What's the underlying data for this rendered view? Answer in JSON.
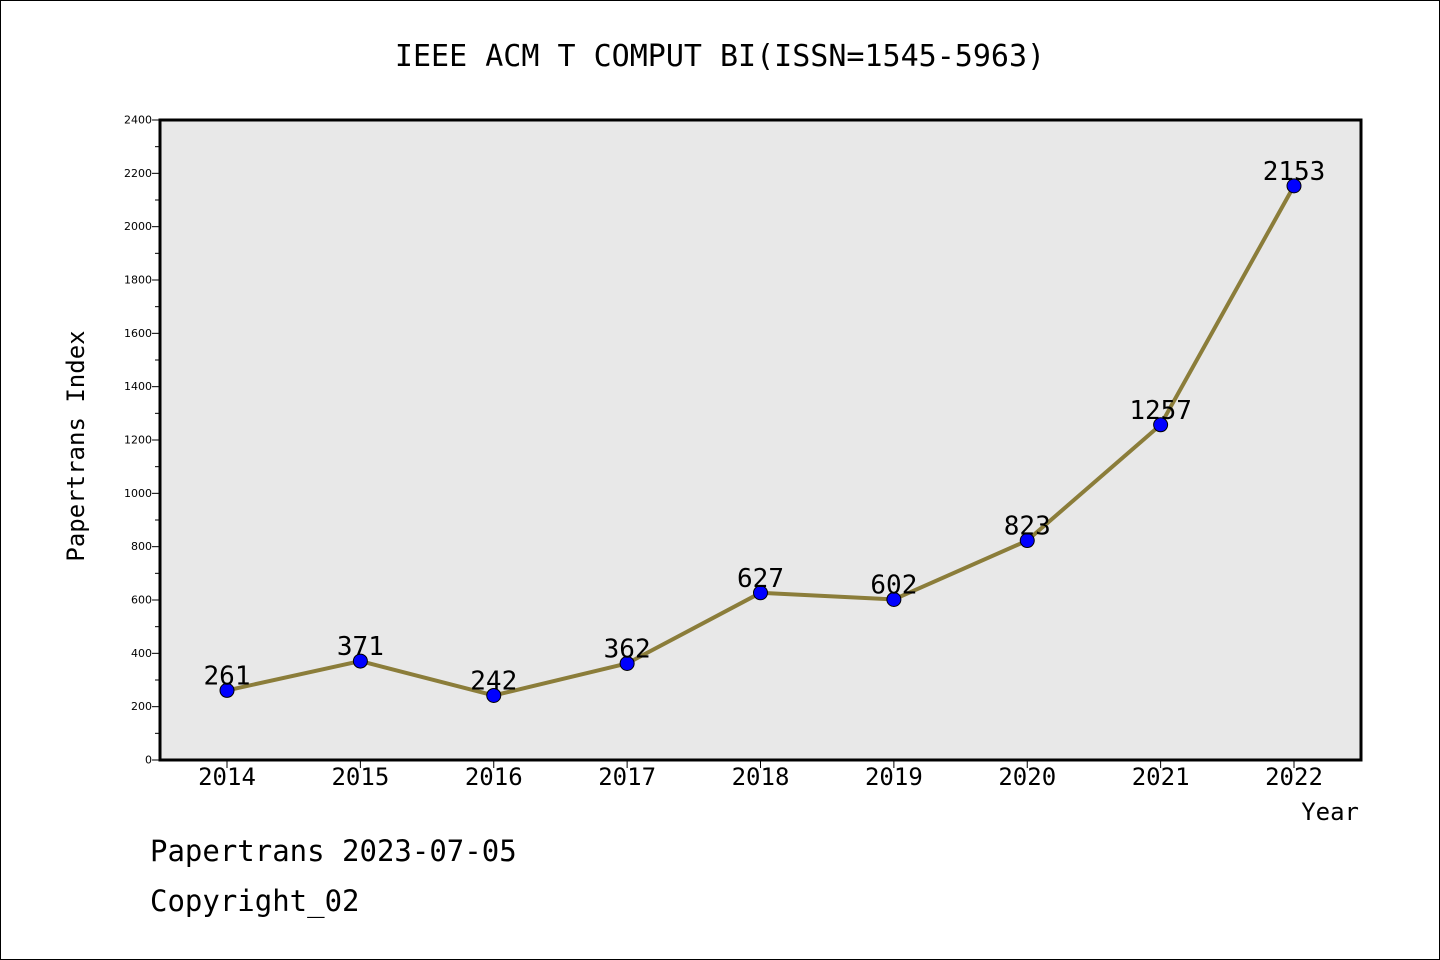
{
  "chart_data": {
    "type": "line",
    "title": "IEEE ACM T COMPUT BI(ISSN=1545-5963)",
    "xlabel": "Year",
    "ylabel": "Papertrans Index",
    "categories": [
      "2014",
      "2015",
      "2016",
      "2017",
      "2018",
      "2019",
      "2020",
      "2021",
      "2022"
    ],
    "series": [
      {
        "values": [
          261,
          371,
          242,
          362,
          627,
          602,
          823,
          1257,
          2153
        ]
      }
    ],
    "ylim": [
      0,
      2400
    ],
    "yticks": [
      0,
      200,
      400,
      600,
      800,
      1000,
      1200,
      1400,
      1600,
      1800,
      2000,
      2200,
      2400
    ],
    "data_labels": true,
    "grid": false,
    "colors": {
      "line": "#8b7d3a",
      "marker": "#0000ff",
      "plot_bg": "#e8e8e8"
    }
  },
  "footer": {
    "line1": "Papertrans 2023-07-05",
    "line2": "Copyright_02"
  }
}
